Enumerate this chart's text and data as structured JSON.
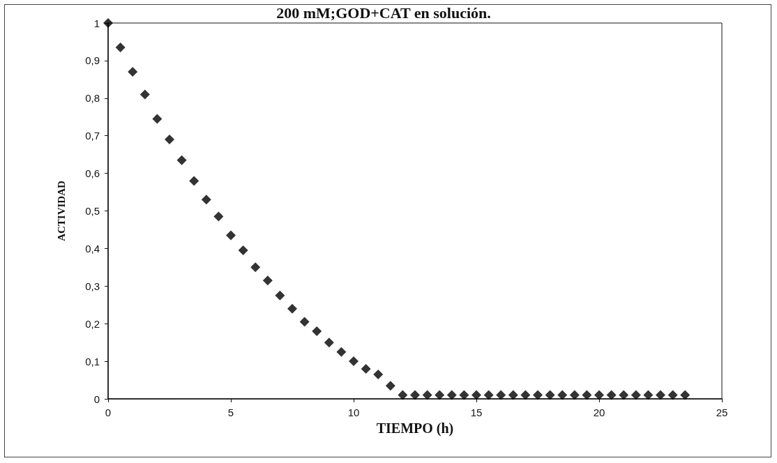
{
  "chart_data": {
    "type": "scatter",
    "title": "200 mM;GOD+CAT en solución.",
    "xlabel": "TIEMPO (h)",
    "ylabel": "ACTIVIDAD",
    "x": [
      0,
      0.5,
      1,
      1.5,
      2,
      2.5,
      3,
      3.5,
      4,
      4.5,
      5,
      5.5,
      6,
      6.5,
      7,
      7.5,
      8,
      8.5,
      9,
      9.5,
      10,
      10.5,
      11,
      11.5,
      12,
      12.5,
      13,
      13.5,
      14,
      14.5,
      15,
      15.5,
      16,
      16.5,
      17,
      17.5,
      18,
      18.5,
      19,
      19.5,
      20,
      20.5,
      21,
      21.5,
      22,
      22.5,
      23,
      23.5
    ],
    "series": [
      {
        "color": "#000000",
        "values": [
          1,
          0.935,
          0.87,
          0.81,
          0.745,
          0.69,
          0.635,
          0.58,
          0.53,
          0.485,
          0.435,
          0.395,
          0.35,
          0.315,
          0.275,
          0.24,
          0.205,
          0.18,
          0.15,
          0.125,
          0.1,
          0.08,
          0.065,
          0.035,
          0.01,
          0.01,
          0.01,
          0.01,
          0.01,
          0.01,
          0.01,
          0.01,
          0.01,
          0.01,
          0.01,
          0.01,
          0.01,
          0.01,
          0.01,
          0.01,
          0.01,
          0.01,
          0.01,
          0.01,
          0.01,
          0.01,
          0.01,
          0.01
        ]
      }
    ],
    "xlim": [
      0,
      25
    ],
    "xticks": [
      0,
      5,
      10,
      15,
      20,
      25
    ],
    "ylim": [
      0,
      1
    ],
    "yticks": [
      {
        "value": 0,
        "label": "0"
      },
      {
        "value": 0.1,
        "label": "0,1"
      },
      {
        "value": 0.2,
        "label": "0,2"
      },
      {
        "value": 0.3,
        "label": "0,3"
      },
      {
        "value": 0.4,
        "label": "0,4"
      },
      {
        "value": 0.5,
        "label": "0,5"
      },
      {
        "value": 0.6,
        "label": "0,6"
      },
      {
        "value": 0.7,
        "label": "0,7"
      },
      {
        "value": 0.8,
        "label": "0,8"
      },
      {
        "value": 0.9,
        "label": "0,9"
      },
      {
        "value": 1,
        "label": "1"
      }
    ],
    "grid": false,
    "marker": "diamond"
  }
}
